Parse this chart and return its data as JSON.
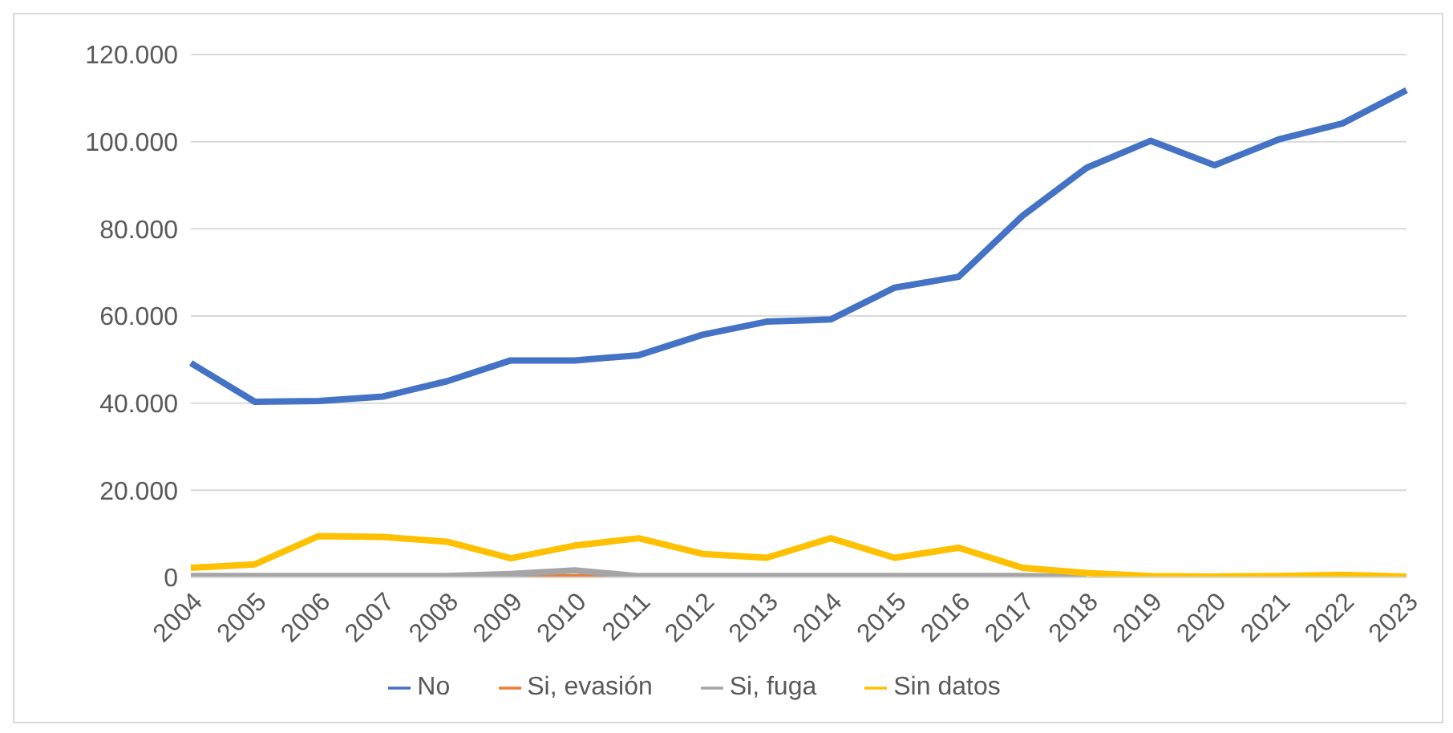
{
  "chart_data": {
    "type": "line",
    "categories": [
      "2004",
      "2005",
      "2006",
      "2007",
      "2008",
      "2009",
      "2010",
      "2011",
      "2012",
      "2013",
      "2014",
      "2015",
      "2016",
      "2017",
      "2018",
      "2019",
      "2020",
      "2021",
      "2022",
      "2023"
    ],
    "series": [
      {
        "name": "No",
        "color": "#4472c4",
        "values": [
          49200,
          40300,
          40500,
          41500,
          45000,
          49800,
          49800,
          51000,
          55700,
          58700,
          59200,
          66500,
          69000,
          83000,
          94000,
          100200,
          94600,
          100500,
          104200,
          111800
        ]
      },
      {
        "name": "Si, evasión",
        "color": "#ed7d31",
        "values": [
          null,
          null,
          null,
          null,
          null,
          0,
          0,
          0,
          null,
          null,
          null,
          null,
          null,
          null,
          null,
          null,
          null,
          null,
          null,
          null
        ]
      },
      {
        "name": "Si, fuga",
        "color": "#a5a5a5",
        "values": [
          300,
          300,
          300,
          300,
          300,
          800,
          1600,
          300,
          300,
          300,
          300,
          300,
          300,
          300,
          100,
          null,
          null,
          null,
          null,
          null
        ]
      },
      {
        "name": "Sin datos",
        "color": "#ffc000",
        "values": [
          2200,
          3000,
          9500,
          9300,
          8200,
          4400,
          7300,
          9000,
          5400,
          4500,
          9000,
          4500,
          6800,
          2200,
          1000,
          300,
          200,
          300,
          600,
          200
        ]
      }
    ],
    "ylim": [
      0,
      120000
    ],
    "yticks": [
      {
        "value": 0,
        "label": "0"
      },
      {
        "value": 20000,
        "label": "20.000"
      },
      {
        "value": 40000,
        "label": "40.000"
      },
      {
        "value": 60000,
        "label": "60.000"
      },
      {
        "value": 80000,
        "label": "80.000"
      },
      {
        "value": 100000,
        "label": "100.000"
      },
      {
        "value": 120000,
        "label": "120.000"
      }
    ],
    "grid": "y",
    "legend": "bottom",
    "marker": "none",
    "line_style": "solid"
  }
}
